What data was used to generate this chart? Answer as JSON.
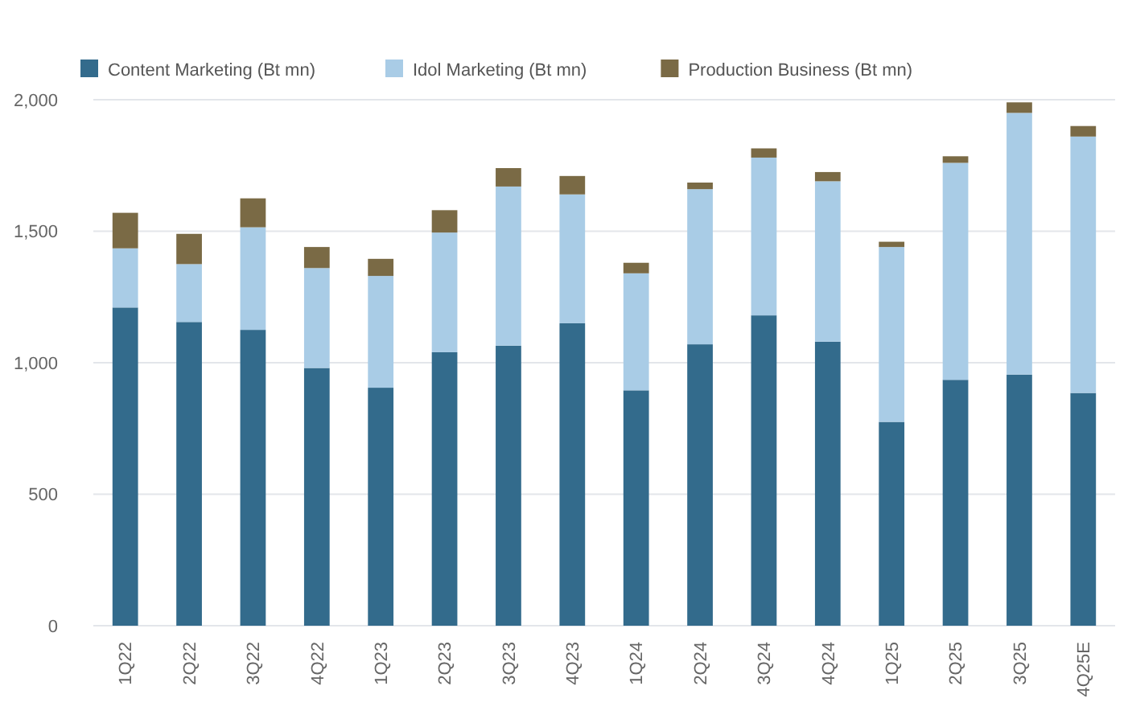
{
  "chart_data": {
    "type": "bar",
    "stacked": true,
    "categories": [
      "1Q22",
      "2Q22",
      "3Q22",
      "4Q22",
      "1Q23",
      "2Q23",
      "3Q23",
      "4Q23",
      "1Q24",
      "2Q24",
      "3Q24",
      "4Q24",
      "1Q25",
      "2Q25",
      "3Q25",
      "4Q25E"
    ],
    "series": [
      {
        "name": "Content Marketing (Bt mn)",
        "color": "#336b8c",
        "values": [
          1210,
          1155,
          1125,
          980,
          905,
          1040,
          1065,
          1150,
          895,
          1070,
          1180,
          1080,
          775,
          935,
          955,
          885
        ]
      },
      {
        "name": "Idol Marketing (Bt mn)",
        "color": "#a9cce6",
        "values": [
          225,
          220,
          390,
          380,
          425,
          455,
          605,
          490,
          445,
          590,
          600,
          610,
          665,
          825,
          995,
          975
        ]
      },
      {
        "name": "Production Business (Bt mn)",
        "color": "#7a6a45",
        "values": [
          135,
          115,
          110,
          80,
          65,
          85,
          70,
          70,
          40,
          25,
          35,
          35,
          20,
          25,
          40,
          40
        ]
      }
    ],
    "ylim": [
      0,
      2000
    ],
    "yticks": [
      {
        "value": 0,
        "label": "0"
      },
      {
        "value": 500,
        "label": "500"
      },
      {
        "value": 1000,
        "label": "1,000"
      },
      {
        "value": 1500,
        "label": "1,500"
      },
      {
        "value": 2000,
        "label": "2,000"
      }
    ],
    "grid": "y",
    "legend": "top"
  }
}
